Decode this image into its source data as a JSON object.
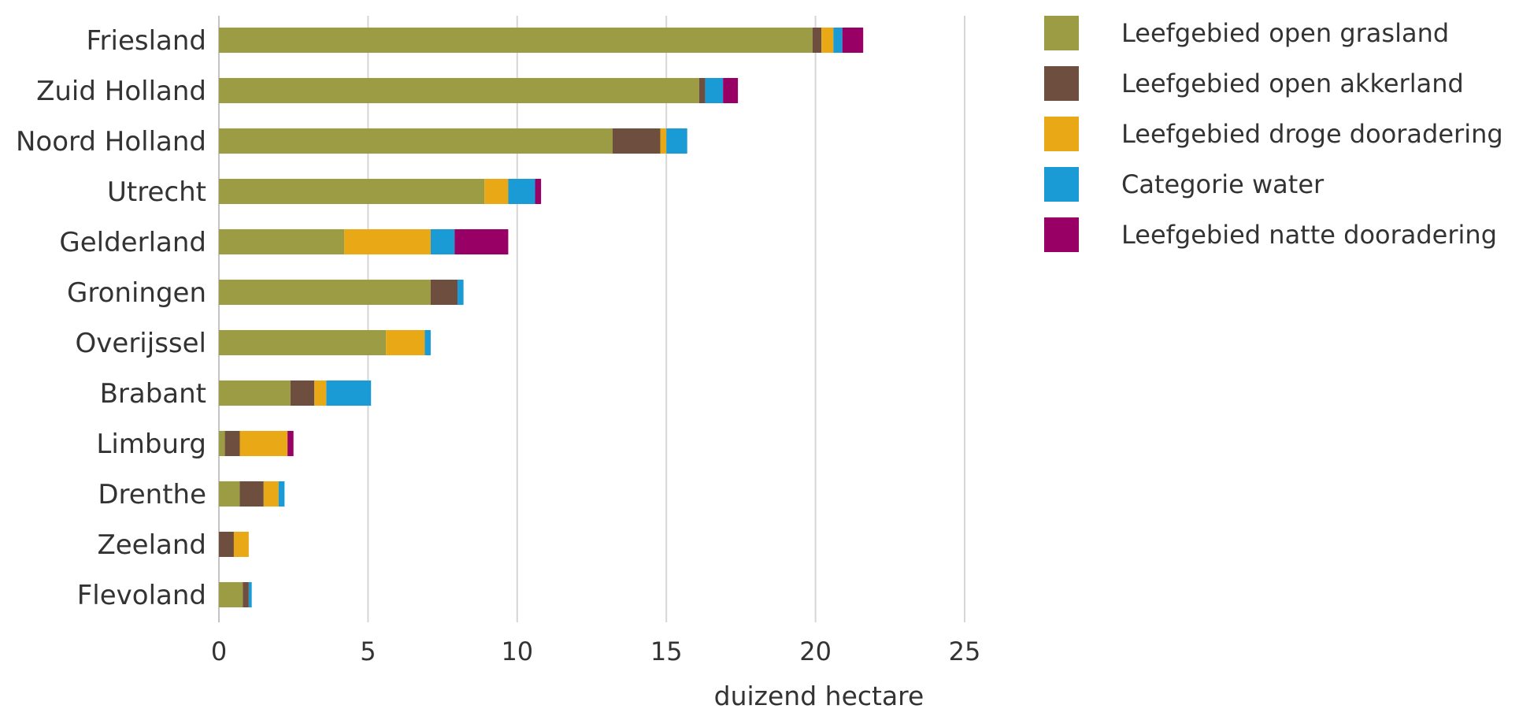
{
  "chart_data": {
    "type": "bar",
    "orientation": "horizontal",
    "stacked": true,
    "categories": [
      "Friesland",
      "Zuid Holland",
      "Noord Holland",
      "Utrecht",
      "Gelderland",
      "Groningen",
      "Overijssel",
      "Brabant",
      "Limburg",
      "Drenthe",
      "Zeeland",
      "Flevoland"
    ],
    "series": [
      {
        "name": "Leefgebied open grasland",
        "color": "#9c9c45",
        "values": [
          19.9,
          16.1,
          13.2,
          8.9,
          4.2,
          7.1,
          5.6,
          2.4,
          0.2,
          0.7,
          0.0,
          0.8
        ]
      },
      {
        "name": "Leefgebied open akkerland",
        "color": "#6e4e3e",
        "values": [
          0.3,
          0.2,
          1.6,
          0.0,
          0.0,
          0.9,
          0.0,
          0.8,
          0.5,
          0.8,
          0.5,
          0.2
        ]
      },
      {
        "name": "Leefgebied droge dooradering",
        "color": "#e9a917",
        "values": [
          0.4,
          0.0,
          0.2,
          0.8,
          2.9,
          0.0,
          1.3,
          0.4,
          1.6,
          0.5,
          0.5,
          0.0
        ]
      },
      {
        "name": "Categorie water",
        "color": "#1b9bd6",
        "values": [
          0.3,
          0.6,
          0.7,
          0.9,
          0.8,
          0.2,
          0.2,
          1.5,
          0.0,
          0.2,
          0.0,
          0.1
        ]
      },
      {
        "name": "Leefgebied natte dooradering",
        "color": "#990066",
        "values": [
          0.7,
          0.5,
          0.0,
          0.2,
          1.8,
          0.0,
          0.0,
          0.0,
          0.2,
          0.0,
          0.0,
          0.0
        ]
      }
    ],
    "xlabel": "duizend hectare",
    "ylabel": "",
    "xlim": [
      0,
      25
    ],
    "xticks": [
      0,
      5,
      10,
      15,
      20,
      25
    ],
    "grid": true,
    "legend_position": "top-right"
  }
}
